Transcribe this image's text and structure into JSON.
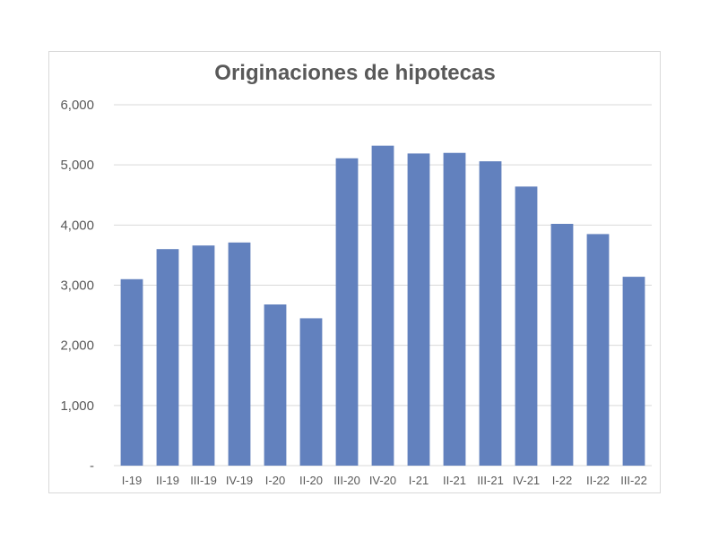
{
  "chart_data": {
    "type": "bar",
    "title": "Originaciones de hipotecas",
    "xlabel": "",
    "ylabel": "",
    "categories": [
      "I-19",
      "II-19",
      "III-19",
      "IV-19",
      "I-20",
      "II-20",
      "III-20",
      "IV-20",
      "I-21",
      "II-21",
      "III-21",
      "IV-21",
      "I-22",
      "II-22",
      "III-22"
    ],
    "values": [
      3100,
      3600,
      3660,
      3710,
      2680,
      2450,
      5110,
      5320,
      5190,
      5200,
      5060,
      4640,
      4020,
      3850,
      3140
    ],
    "ylim": [
      0,
      6000
    ],
    "yticks": [
      0,
      1000,
      2000,
      3000,
      4000,
      5000,
      6000
    ],
    "ytick_labels": [
      "-",
      "1,000",
      "2,000",
      "3,000",
      "4,000",
      "5,000",
      "6,000"
    ],
    "grid": true,
    "legend": "none",
    "bar_color": "#6281be"
  }
}
